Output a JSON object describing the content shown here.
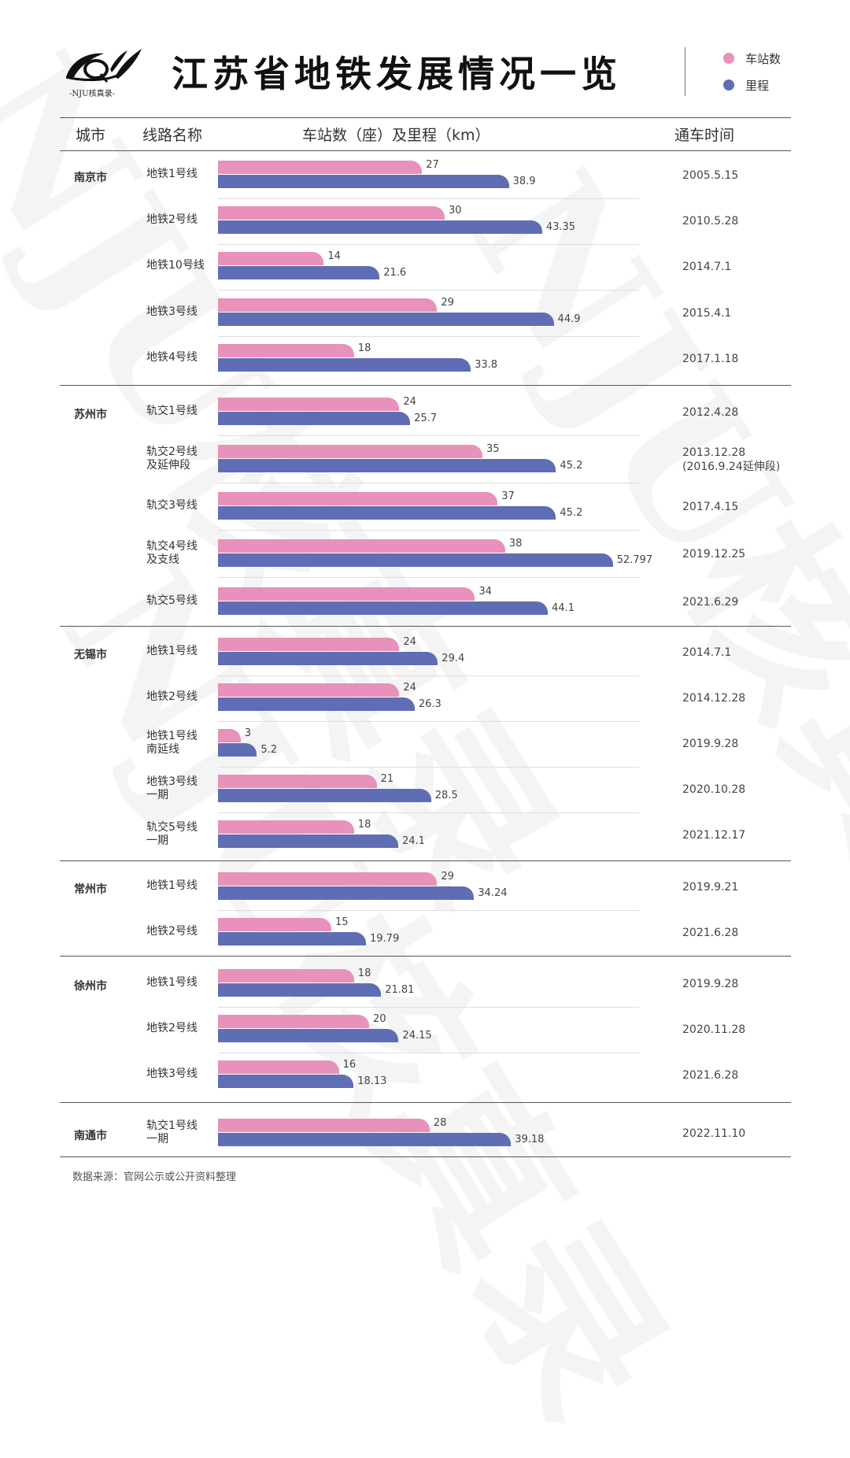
{
  "header": {
    "logo_text": "-NJU核真录-",
    "title": "江苏省地铁发展情况一览"
  },
  "legend": [
    {
      "label": "车站数",
      "color": "#e891bb"
    },
    {
      "label": "里程",
      "color": "#5f6db5"
    }
  ],
  "columns": {
    "city": "城市",
    "line": "线路名称",
    "bars": "车站数（座）及里程（km）",
    "date": "通车时间"
  },
  "watermark": "NJU核真录",
  "chart_data": {
    "type": "bar",
    "orientation": "horizontal",
    "series": [
      {
        "name": "车站数",
        "unit": "座",
        "color": "#e891bb"
      },
      {
        "name": "里程",
        "unit": "km",
        "color": "#5f6db5"
      }
    ],
    "groups": [
      {
        "city": "南京市",
        "rows": [
          {
            "line": [
              "地铁1号线"
            ],
            "stations": 27,
            "km": "38.9",
            "date": [
              "2005.5.15"
            ]
          },
          {
            "line": [
              "地铁2号线"
            ],
            "stations": 30,
            "km": "43.35",
            "date": [
              "2010.5.28"
            ]
          },
          {
            "line": [
              "地铁10号线"
            ],
            "stations": 14,
            "km": "21.6",
            "date": [
              "2014.7.1"
            ]
          },
          {
            "line": [
              "地铁3号线"
            ],
            "stations": 29,
            "km": "44.9",
            "date": [
              "2015.4.1"
            ]
          },
          {
            "line": [
              "地铁4号线"
            ],
            "stations": 18,
            "km": "33.8",
            "date": [
              "2017.1.18"
            ]
          }
        ]
      },
      {
        "city": "苏州市",
        "rows": [
          {
            "line": [
              "轨交1号线"
            ],
            "stations": 24,
            "km": "25.7",
            "date": [
              "2012.4.28"
            ]
          },
          {
            "line": [
              "轨交2号线",
              "及延伸段"
            ],
            "stations": 35,
            "km": "45.2",
            "date": [
              "2013.12.28",
              "(2016.9.24延伸段)"
            ]
          },
          {
            "line": [
              "轨交3号线"
            ],
            "stations": 37,
            "km": "45.2",
            "date": [
              "2017.4.15"
            ]
          },
          {
            "line": [
              "轨交4号线",
              "及支线"
            ],
            "stations": 38,
            "km": "52.797",
            "date": [
              "2019.12.25"
            ]
          },
          {
            "line": [
              "轨交5号线"
            ],
            "stations": 34,
            "km": "44.1",
            "date": [
              "2021.6.29"
            ]
          }
        ]
      },
      {
        "city": "无锡市",
        "rows": [
          {
            "line": [
              "地铁1号线"
            ],
            "stations": 24,
            "km": "29.4",
            "date": [
              "2014.7.1"
            ]
          },
          {
            "line": [
              "地铁2号线"
            ],
            "stations": 24,
            "km": "26.3",
            "date": [
              "2014.12.28"
            ]
          },
          {
            "line": [
              "地铁1号线",
              "南延线"
            ],
            "stations": 3,
            "km": "5.2",
            "date": [
              "2019.9.28"
            ]
          },
          {
            "line": [
              "地铁3号线",
              "一期"
            ],
            "stations": 21,
            "km": "28.5",
            "date": [
              "2020.10.28"
            ]
          },
          {
            "line": [
              "轨交5号线",
              "一期"
            ],
            "stations": 18,
            "km": "24.1",
            "date": [
              "2021.12.17"
            ]
          }
        ]
      },
      {
        "city": "常州市",
        "rows": [
          {
            "line": [
              "地铁1号线"
            ],
            "stations": 29,
            "km": "34.24",
            "date": [
              "2019.9.21"
            ]
          },
          {
            "line": [
              "地铁2号线"
            ],
            "stations": 15,
            "km": "19.79",
            "date": [
              "2021.6.28"
            ]
          }
        ]
      },
      {
        "city": "徐州市",
        "rows": [
          {
            "line": [
              "地铁1号线"
            ],
            "stations": 18,
            "km": "21.81",
            "date": [
              "2019.9.28"
            ]
          },
          {
            "line": [
              "地铁2号线"
            ],
            "stations": 20,
            "km": "24.15",
            "date": [
              "2020.11.28"
            ]
          },
          {
            "line": [
              "地铁3号线"
            ],
            "stations": 16,
            "km": "18.13",
            "date": [
              "2021.6.28"
            ]
          }
        ]
      },
      {
        "city": "南通市",
        "rows": [
          {
            "line": [
              "轨交1号线",
              "一期"
            ],
            "stations": 28,
            "km": "39.18",
            "date": [
              "2022.11.10"
            ]
          }
        ]
      }
    ]
  },
  "footer": {
    "source": "数据来源：官网公示或公开资料整理"
  }
}
